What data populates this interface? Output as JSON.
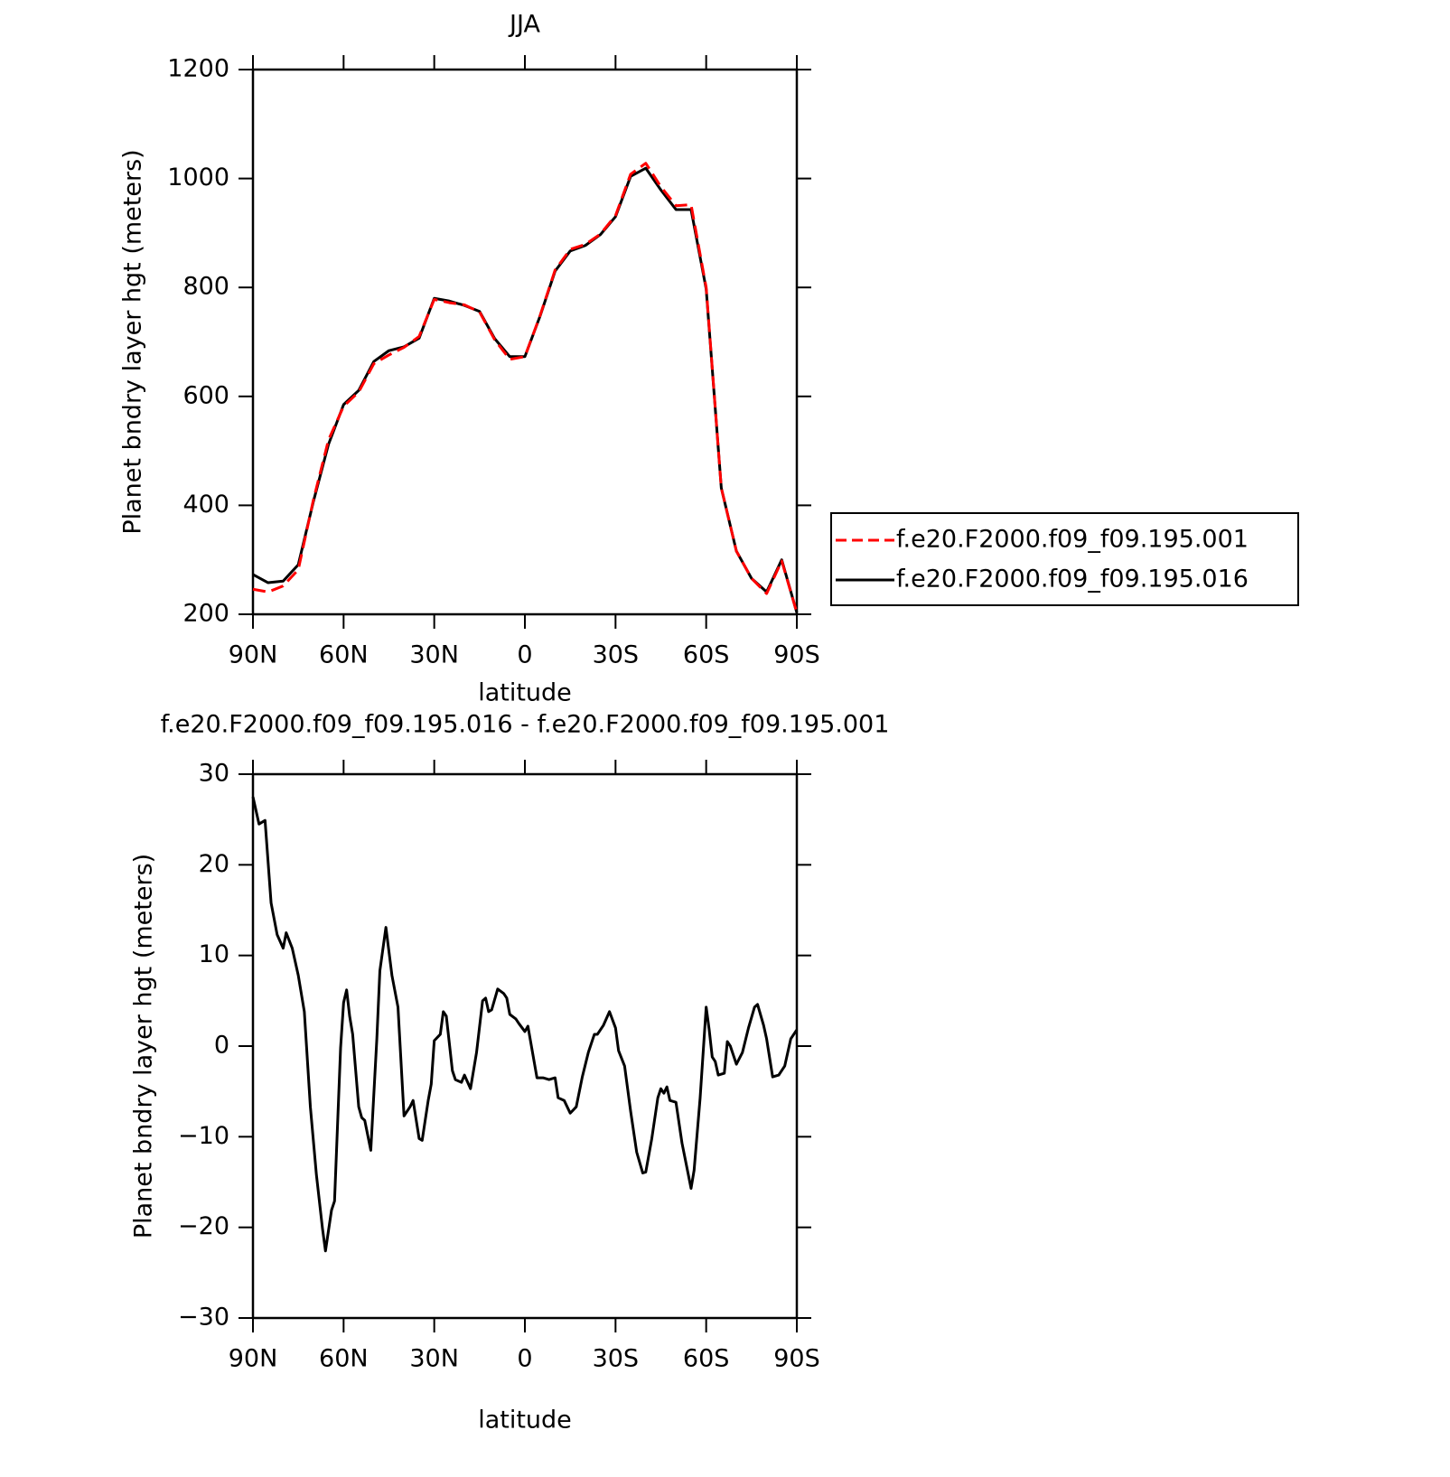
{
  "chart_data": [
    {
      "type": "line",
      "title": "JJA",
      "xlabel": "latitude",
      "ylabel": "Planet bndry layer hgt (meters)",
      "xlim": [
        90,
        -90
      ],
      "xticks": [
        {
          "value": 90,
          "label": "90N"
        },
        {
          "value": 60,
          "label": "60N"
        },
        {
          "value": 30,
          "label": "30N"
        },
        0,
        {
          "value": -30,
          "label": "30S"
        },
        {
          "value": -60,
          "label": "60S"
        },
        {
          "value": -90,
          "label": "90S"
        }
      ],
      "ylim": [
        200,
        1200
      ],
      "yticks": [
        200,
        400,
        600,
        800,
        1000,
        1200
      ],
      "legend": "outside-right",
      "x": [
        90,
        85,
        80,
        75,
        70,
        65,
        60,
        55,
        50,
        45,
        40,
        35,
        30,
        25,
        20,
        15,
        10,
        5,
        0,
        -5,
        -10,
        -15,
        -20,
        -25,
        -30,
        -35,
        -40,
        -45,
        -50,
        -55,
        -60,
        -65,
        -70,
        -75,
        -80,
        -85,
        -90
      ],
      "series": [
        {
          "name": "f.e20.F2000.f09_f09.195.001",
          "color": "#ff0000",
          "dash": true,
          "values": [
            246,
            241,
            252,
            282,
            410,
            520,
            582,
            608,
            660,
            676,
            690,
            710,
            778,
            772,
            768,
            755,
            704,
            668,
            673,
            748,
            832,
            870,
            879,
            898,
            932,
            1008,
            1028,
            985,
            950,
            952,
            800,
            432,
            316,
            266,
            238,
            298,
            203
          ]
        },
        {
          "name": "f.e20.F2000.f09_f09.195.016",
          "color": "#000000",
          "dash": false,
          "values": [
            273,
            258,
            261,
            291,
            407,
            512,
            585,
            611,
            664,
            684,
            691,
            707,
            780,
            775,
            767,
            756,
            706,
            673,
            673,
            747,
            830,
            867,
            877,
            897,
            930,
            1004,
            1019,
            979,
            943,
            943,
            797,
            432,
            316,
            266,
            241,
            300,
            203
          ]
        }
      ]
    },
    {
      "type": "line",
      "title": "f.e20.F2000.f09_f09.195.016 - f.e20.F2000.f09_f09.195.001",
      "xlabel": "latitude",
      "ylabel": "Planet bndry layer hgt (meters)",
      "xlim": [
        90,
        -90
      ],
      "xticks": [
        {
          "value": 90,
          "label": "90N"
        },
        {
          "value": 60,
          "label": "60N"
        },
        {
          "value": 30,
          "label": "30N"
        },
        0,
        {
          "value": -30,
          "label": "30S"
        },
        {
          "value": -60,
          "label": "60S"
        },
        {
          "value": -90,
          "label": "90S"
        }
      ],
      "ylim": [
        -30,
        30
      ],
      "yticks": [
        -30,
        -20,
        -10,
        0,
        10,
        20,
        30
      ],
      "color": "#000000",
      "x": [
        90,
        88,
        86,
        84,
        82,
        80,
        79,
        77,
        75,
        73,
        71,
        69,
        67,
        66,
        64,
        63,
        61,
        60,
        59,
        58,
        57,
        55,
        54,
        53,
        51,
        49,
        48,
        46,
        44,
        42,
        40,
        38,
        37,
        35,
        34,
        32,
        31,
        30,
        28,
        27,
        26,
        24,
        23,
        21,
        20,
        18,
        16,
        14,
        13,
        12,
        11,
        9,
        7,
        6,
        5,
        3,
        2,
        0,
        -1,
        -2,
        -4,
        -6,
        -8,
        -10,
        -11,
        -13,
        -15,
        -17,
        -19,
        -21,
        -23,
        -24,
        -26,
        -28,
        -30,
        -31,
        -33,
        -35,
        -37,
        -39,
        -40,
        -42,
        -44,
        -45,
        -46,
        -47,
        -48,
        -50,
        -52,
        -55,
        -56,
        -58,
        -60,
        -61,
        -62,
        -63,
        -64,
        -66,
        -67,
        -68,
        -70,
        -72,
        -74,
        -76,
        -77,
        -79,
        -80,
        -82,
        -84,
        -85,
        -86,
        -88,
        -90
      ],
      "values": [
        27.5,
        24.5,
        24.9,
        15.8,
        12.3,
        10.8,
        12.5,
        10.8,
        7.8,
        3.8,
        -6.7,
        -14.2,
        -20.1,
        -22.6,
        -18.1,
        -17.1,
        -0.2,
        4.8,
        6.2,
        3.3,
        1.3,
        -6.7,
        -7.9,
        -8.2,
        -11.5,
        0.8,
        8.3,
        13.1,
        7.8,
        4.3,
        -7.7,
        -6.7,
        -6.0,
        -10.2,
        -10.4,
        -6.0,
        -4.2,
        0.6,
        1.3,
        3.8,
        3.3,
        -2.7,
        -3.7,
        -4.0,
        -3.2,
        -4.7,
        -0.7,
        5.0,
        5.3,
        3.8,
        4.0,
        6.3,
        5.8,
        5.3,
        3.5,
        3.0,
        2.5,
        1.6,
        2.2,
        0.3,
        -3.5,
        -3.5,
        -3.7,
        -3.5,
        -5.7,
        -6.0,
        -7.4,
        -6.7,
        -3.4,
        -0.7,
        1.3,
        1.3,
        2.3,
        3.8,
        2.0,
        -0.5,
        -2.2,
        -7.2,
        -11.7,
        -14.0,
        -13.9,
        -10.2,
        -5.7,
        -4.7,
        -5.2,
        -4.5,
        -6.0,
        -6.2,
        -10.7,
        -15.7,
        -13.7,
        -5.7,
        4.3,
        1.8,
        -1.2,
        -1.7,
        -3.2,
        -3.0,
        0.5,
        0,
        -2.0,
        -0.7,
        2.0,
        4.3,
        4.6,
        2.3,
        0.8,
        -3.4,
        -3.2,
        -2.7,
        -2.2,
        0.8,
        1.8
      ]
    }
  ]
}
